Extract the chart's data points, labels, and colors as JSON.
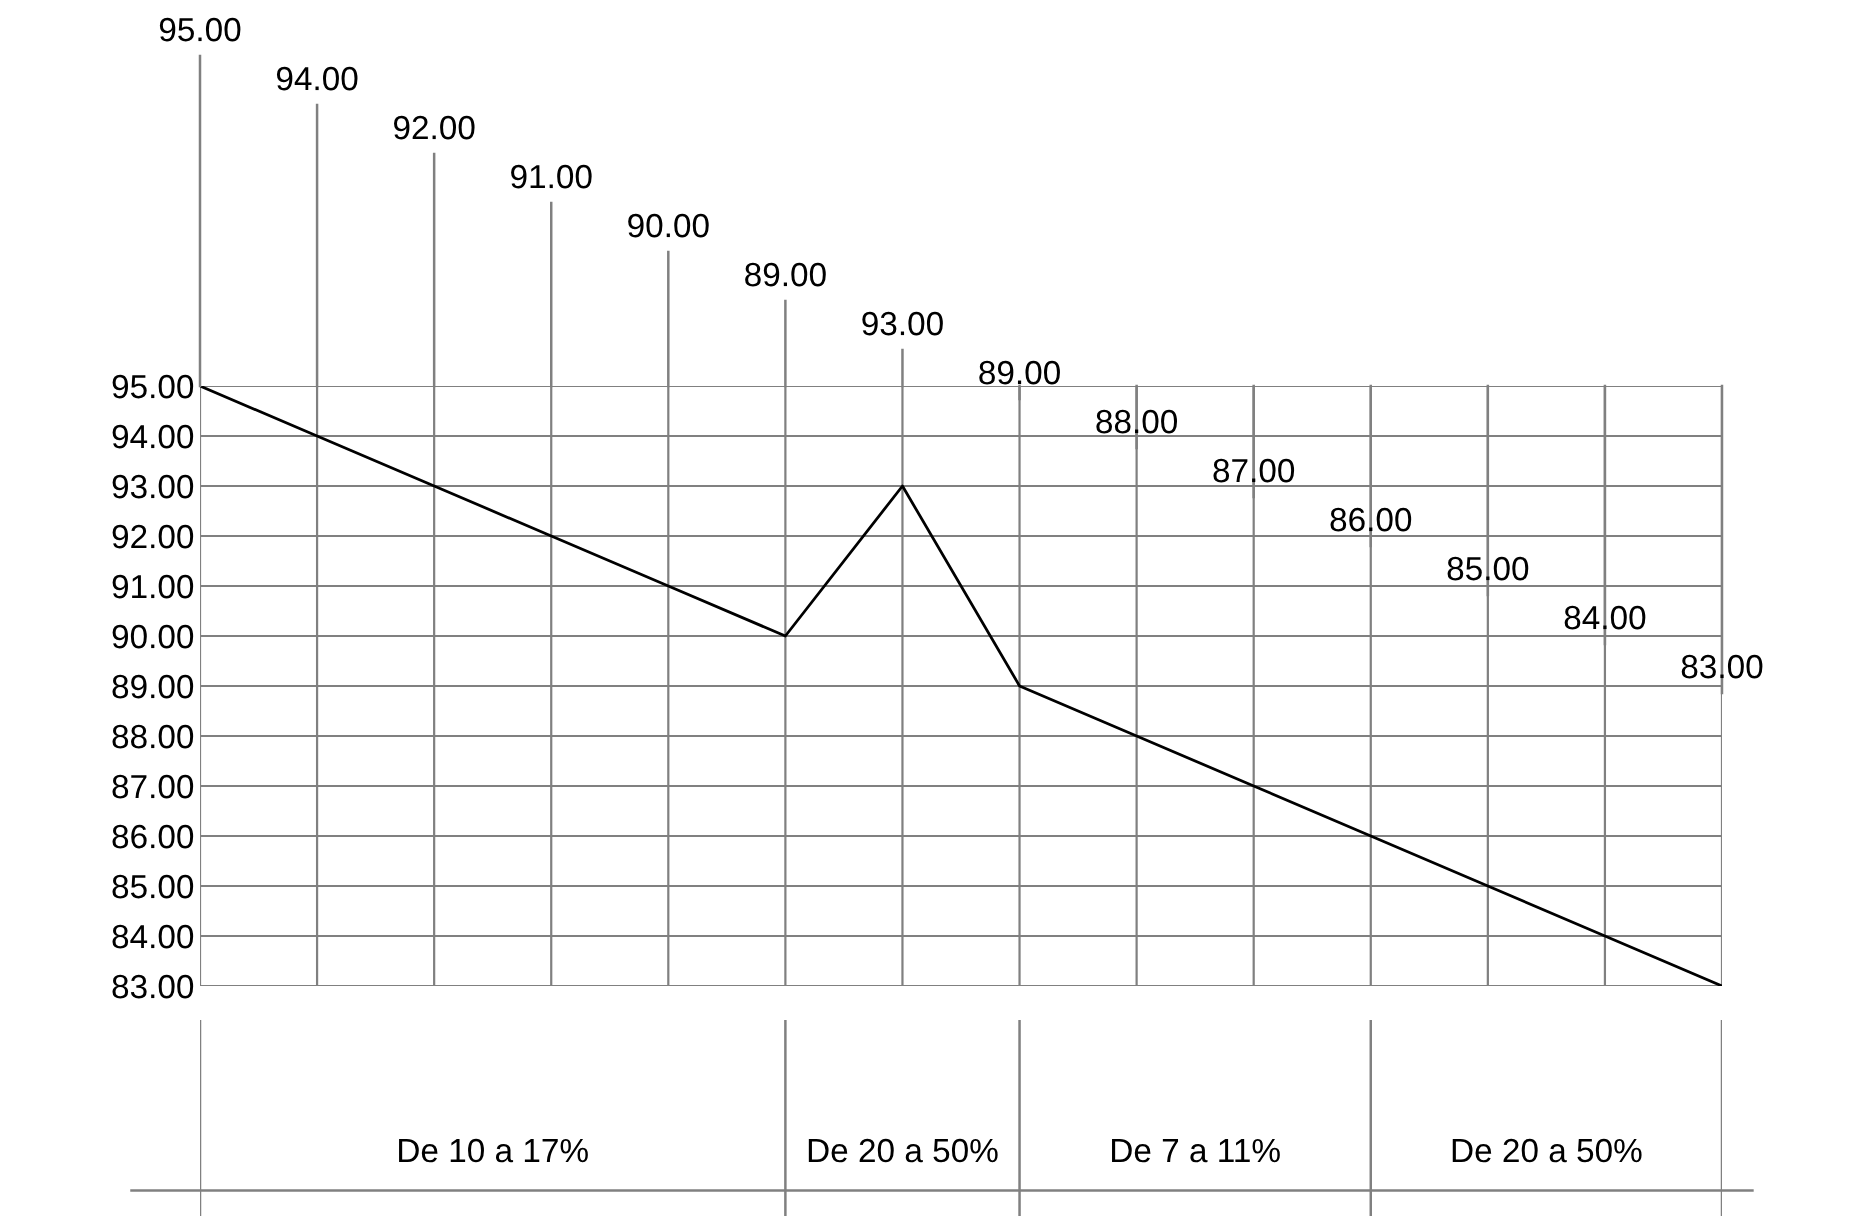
{
  "chart_data": {
    "type": "line",
    "categories": [
      null,
      null,
      null,
      null,
      null,
      null,
      null,
      null,
      null,
      null,
      null,
      null,
      null,
      null
    ],
    "series": [
      {
        "color": "#000000",
        "values": [
          95,
          94,
          93,
          92,
          91,
          90,
          93,
          89,
          88,
          87,
          86,
          85,
          84,
          83
        ]
      }
    ],
    "annotations": [
      "95.00",
      "94.00",
      "92.00",
      "91.00",
      "90.00",
      "89.00",
      "93.00",
      "89.00",
      "88.00",
      "87.00",
      "86.00",
      "85.00",
      "84.00",
      "83.00",
      "De 10 a 17%",
      "De 20 a 50%",
      "De 7 a 11%",
      "De 20 a 50%"
    ],
    "ylim": [
      83,
      95
    ],
    "yticks": [
      {
        "value": 83,
        "label": "83.00"
      },
      {
        "value": 84,
        "label": "84.00"
      },
      {
        "value": 85,
        "label": "85.00"
      },
      {
        "value": 86,
        "label": "86.00"
      },
      {
        "value": 87,
        "label": "87.00"
      },
      {
        "value": 88,
        "label": "88.00"
      },
      {
        "value": 89,
        "label": "89.00"
      },
      {
        "value": 90,
        "label": "90.00"
      },
      {
        "value": 91,
        "label": "91.00"
      },
      {
        "value": 92,
        "label": "92.00"
      },
      {
        "value": 93,
        "label": "93.00"
      },
      {
        "value": 94,
        "label": "94.00"
      },
      {
        "value": 95,
        "label": "95.00"
      }
    ],
    "grid": true,
    "tick_labels": "y",
    "marker": "none",
    "line_style": "solid",
    "legend": false
  }
}
